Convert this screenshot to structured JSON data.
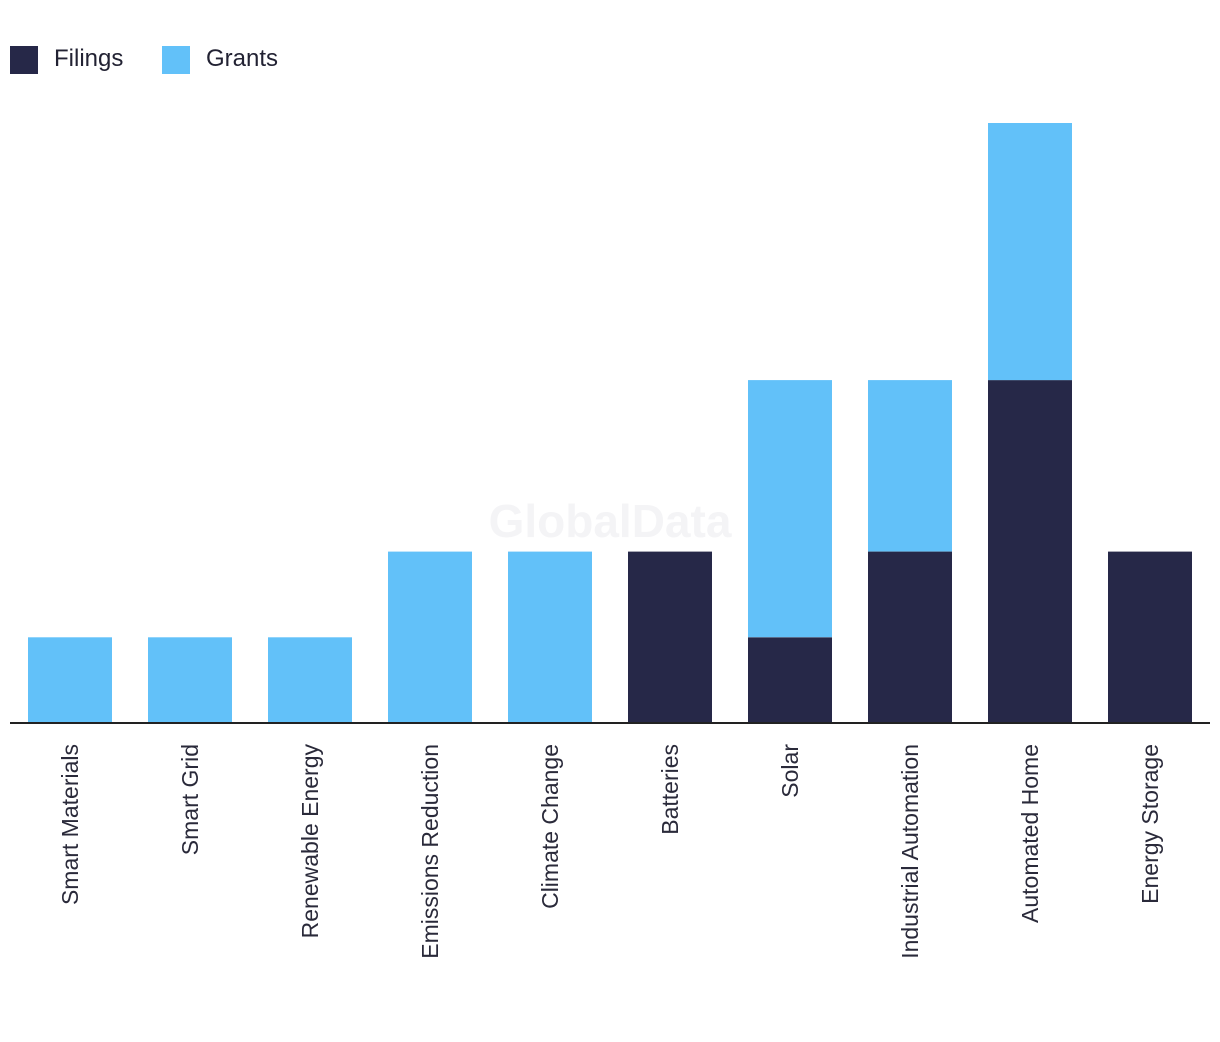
{
  "watermark": "GlobalData",
  "colors": {
    "filings": "#262848",
    "grants": "#62c1f9",
    "axis": "#222222"
  },
  "chart_data": {
    "type": "bar",
    "stacked": true,
    "categories": [
      "Smart Materials",
      "Smart Grid",
      "Renewable Energy",
      "Emissions Reduction",
      "Climate Change",
      "Batteries",
      "Solar",
      "Industrial Automation",
      "Automated Home",
      "Energy Storage"
    ],
    "series": [
      {
        "name": "Filings",
        "values": [
          0,
          0,
          0,
          0,
          0,
          2,
          1,
          2,
          4,
          2
        ]
      },
      {
        "name": "Grants",
        "values": [
          1,
          1,
          1,
          2,
          2,
          0,
          3,
          2,
          3,
          0
        ]
      }
    ],
    "title": "",
    "xlabel": "",
    "ylabel": "",
    "ylim": [
      0,
      7
    ],
    "grid": false,
    "legend": "top-left"
  }
}
